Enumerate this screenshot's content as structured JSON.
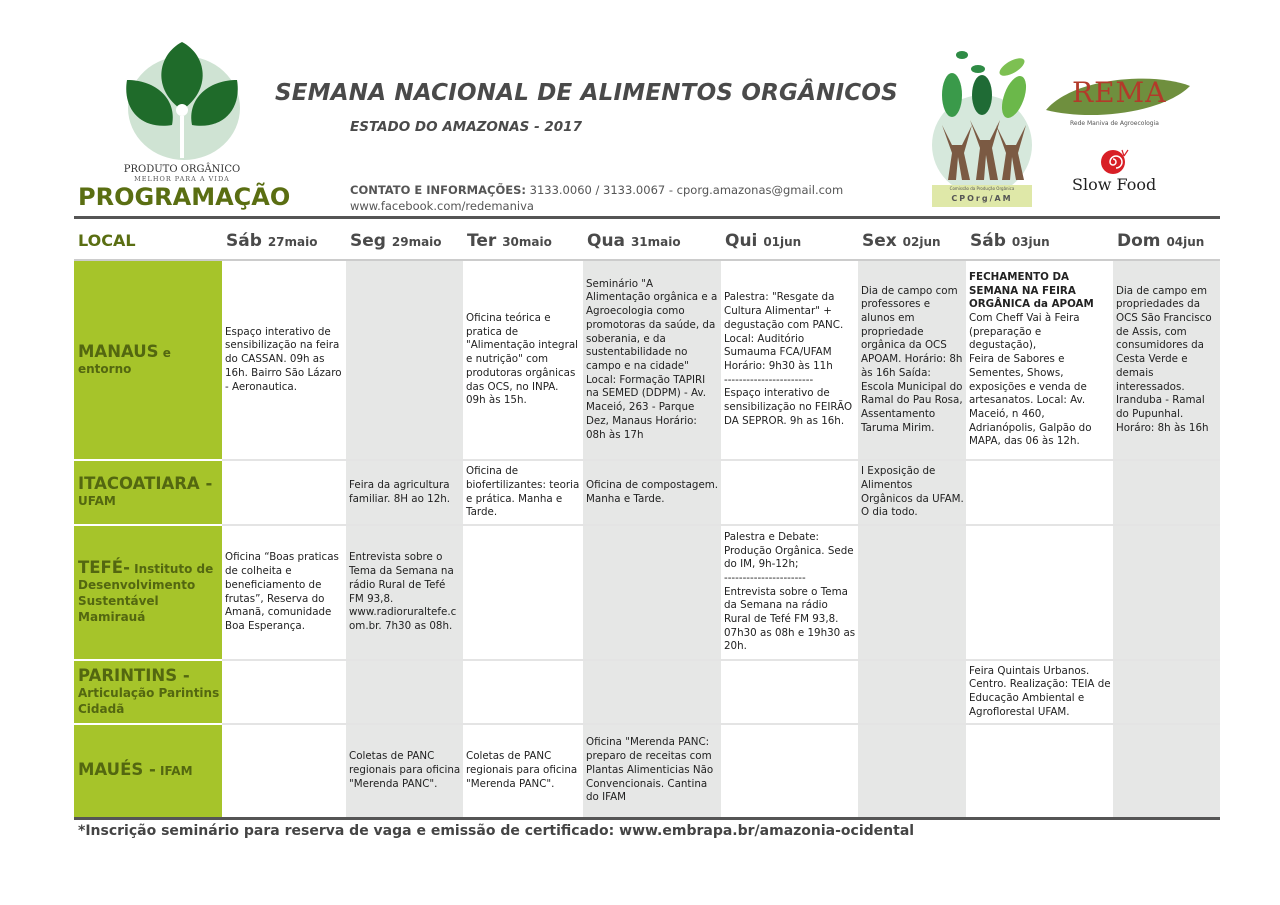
{
  "header": {
    "title": "SEMANA NACIONAL DE ALIMENTOS ORGÂNICOS",
    "subtitle": "ESTADO DO AMAZONAS - 2017",
    "section_title": "PROGRAMAÇÃO",
    "contact_label": "CONTATO E INFORMAÇÕES:",
    "contact_value": " 3133.0060 / 3133.0067 - cporg.amazonas@gmail.com",
    "facebook": "www.facebook.com/redemaniva"
  },
  "logos": {
    "produto_organico": {
      "line1": "PRODUTO ORGÂNICO",
      "line2": "MELHOR PARA A VIDA"
    },
    "cporg": {
      "line1": "Comissão da Produção Orgânica",
      "line2": "CPOrg/AM"
    },
    "rema": {
      "name": "REMA",
      "caption": "Rede Maniva de Agroecologia"
    },
    "slowfood": {
      "name": "Slow Food"
    }
  },
  "colors": {
    "accent_green": "#a6c42a",
    "dark_green": "#5a6e12",
    "gray_column": "#e6e7e6"
  },
  "table": {
    "local_header": "LOCAL",
    "days": [
      {
        "day": "Sáb",
        "date": "27maio"
      },
      {
        "day": "Seg",
        "date": "29maio"
      },
      {
        "day": "Ter",
        "date": "30maio"
      },
      {
        "day": "Qua",
        "date": "31maio"
      },
      {
        "day": "Qui",
        "date": "01jun"
      },
      {
        "day": "Sex",
        "date": "02jun"
      },
      {
        "day": "Sáb",
        "date": "03jun"
      },
      {
        "day": "Dom",
        "date": "04jun"
      }
    ],
    "rows": [
      {
        "place": "MANAUS",
        "place_detail": " e entorno",
        "cells": [
          "Espaço interativo de sensibilização na feira do CASSAN. 09h as 16h. Bairro São Lázaro - Aeronautica.",
          "",
          "Oficina teórica e pratica de \"Alimentação integral e nutrição\" com produtoras orgânicas das OCS,  no INPA. 09h às 15h.",
          "Seminário \"A Alimentação orgânica e a Agroecologia como promotoras da saúde, da soberania, e da sustentabilidade no campo e na cidade\" Local: Formação TAPIRI na  SEMED (DDPM) - Av. Maceió, 263 - Parque Dez, Manaus Horário: 08h às 17h",
          "Palestra: \"Resgate da Cultura Alimentar\" + degustação com PANC. Local: Auditório Sumauma FCA/UFAM Horário: 9h30 às 11h\n------------------------\nEspaço interativo de sensibilização no FEIRÃO DA SEPROR.  9h as 16h.",
          "Dia de campo com professores e alunos em propriedade orgânica da OCS APOAM. Horário: 8h às 16h Saída: Escola Municipal do Ramal do Pau Rosa, Assentamento Taruma Mirim.",
          "Com Cheff Vai à Feira (preparação e degustação),\nFeira de Sabores e Sementes, Shows, exposições e venda de artesanatos. Local: Av. Maceió, n 460, Adrianópolis, Galpão do MAPA, das 06 às 12h.",
          "Dia de campo em propriedades da OCS São Francisco de Assis, com consumidores da Cesta Verde e demais interessados. Iranduba - Ramal do Pupunhal. Horáro: 8h às 16h"
        ],
        "bold_heading_sab03": "FECHAMENTO DA SEMANA NA FEIRA ORGÂNICA da APOAM"
      },
      {
        "place": "ITACOATIARA -",
        "place_detail": " UFAM",
        "cells": [
          "",
          "Feira da agricultura familiar. 8H ao 12h.",
          "Oficina de biofertilizantes: teoria e prática. Manha e Tarde.",
          "Oficina de compostagem. Manha e Tarde.",
          "",
          "I Exposição de Alimentos Orgânicos da UFAM. O dia todo.",
          "",
          ""
        ]
      },
      {
        "place": "TEFÉ-",
        "place_detail": " Instituto de Desenvolvimento Sustentável Mamirauá",
        "cells": [
          "Oficina “Boas praticas de colheita e beneficiamento de frutas”, Reserva do Amanã, comunidade Boa Esperança.",
          "Entrevista sobre o Tema da Semana na rádio Rural de Tefé FM 93,8. www.radioruraltefe.com.br. 7h30 as 08h.",
          "",
          "",
          "Palestra e Debate: Produção Orgânica. Sede do IM, 9h-12h;\n----------------------\nEntrevista sobre o Tema da Semana na rádio Rural de Tefé FM 93,8. 07h30 as 08h e 19h30 as 20h.",
          "",
          "",
          ""
        ]
      },
      {
        "place": "PARINTINS -",
        "place_detail": " Articulação Parintins Cidadã",
        "cells": [
          "",
          "",
          "",
          "",
          "",
          "",
          "Feira Quintais Urbanos. Centro. Realização: TEIA de Educação Ambiental e Agroflorestal UFAM.",
          ""
        ]
      },
      {
        "place": "MAUÉS -",
        "place_detail": " IFAM",
        "cells": [
          "",
          "Coletas de PANC regionais para oficina \"Merenda PANC\".",
          "Coletas de PANC regionais para oficina \"Merenda PANC\".",
          " Oficina \"Merenda PANC: preparo de receitas com Plantas Alimenticias Não Convencionais. Cantina do IFAM",
          "",
          "",
          "",
          ""
        ]
      }
    ]
  },
  "footnote": "*Inscrição seminário para reserva de vaga e emissão de certificado: www.embrapa.br/amazonia-ocidental"
}
